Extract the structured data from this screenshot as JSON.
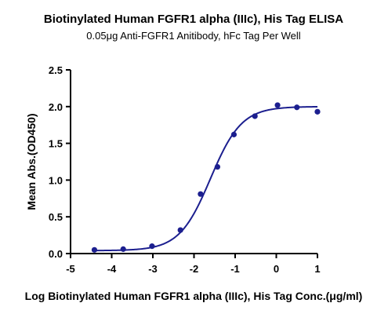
{
  "chart_data": {
    "type": "scatter",
    "title": "Biotinylated Human FGFR1 alpha (IIIc), His Tag ELISA",
    "subtitle": "0.05μg Anti-FGFR1 Anitibody, hFc Tag Per Well",
    "xlabel": "Log Biotinylated Human FGFR1 alpha (IIIc), His Tag Conc.(μg/ml)",
    "ylabel": "Mean Abs.(OD450)",
    "xlim": [
      -5,
      1
    ],
    "ylim": [
      0,
      2.5
    ],
    "xticks": [
      "-5",
      "-4",
      "-3",
      "-2",
      "-1",
      "0",
      "1"
    ],
    "yticks": [
      "0.0",
      "0.5",
      "1.0",
      "1.5",
      "2.0",
      "2.5"
    ],
    "grid": false,
    "color": "#1c1f8f",
    "series": [
      {
        "x": [
          -4.42,
          -3.72,
          -3.02,
          -2.33,
          -1.84,
          -1.43,
          -1.03,
          -0.52,
          0.03,
          0.5,
          1.0
        ],
        "y": [
          0.05,
          0.06,
          0.1,
          0.32,
          0.81,
          1.18,
          1.62,
          1.87,
          2.02,
          1.99,
          1.93
        ]
      }
    ],
    "fit": {
      "model": "4PL",
      "bottom": 0.04,
      "top": 2.0,
      "logEC50": -1.6,
      "hill": 1.15
    }
  }
}
